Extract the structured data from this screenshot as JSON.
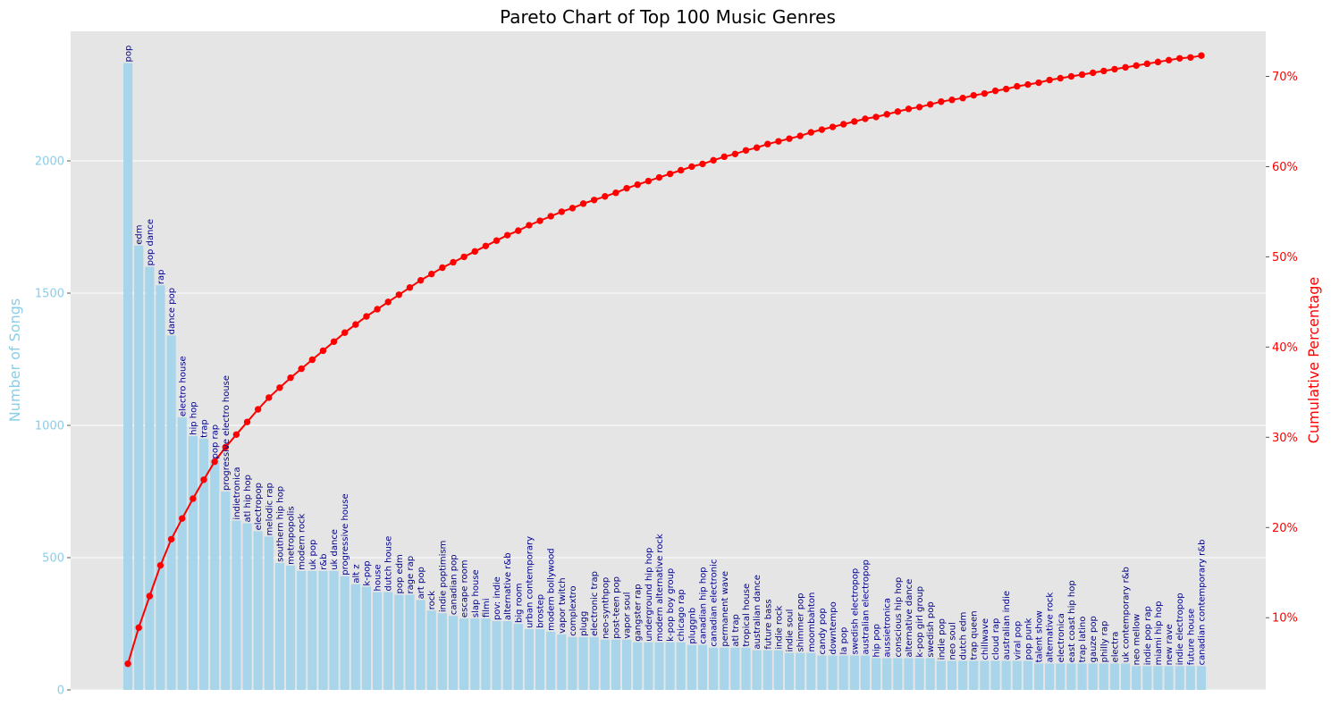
{
  "chart_data": {
    "type": "bar",
    "title": "Pareto Chart of Top 100 Music Genres",
    "ylabel": "Number of Songs",
    "y2label": "Cumulative Percentage",
    "ylim": [
      0,
      2490
    ],
    "y2lim": [
      2.0,
      75.0
    ],
    "yticks": [
      0,
      500,
      1000,
      1500,
      2000
    ],
    "y2ticks": [
      10,
      20,
      30,
      40,
      50,
      60,
      70
    ],
    "grid": true,
    "colors": {
      "background": "#e5e5e5",
      "bar": "#a8d5ea",
      "line": "#ff0000",
      "bar_label": "#00008b",
      "left_axis": "#87ceeb",
      "right_axis": "#ff0000",
      "grid": "#ffffff"
    },
    "categories": [
      "pop",
      "edm",
      "pop dance",
      "rap",
      "dance pop",
      "electro house",
      "hip hop",
      "trap",
      "pop rap",
      "progressive electro house",
      "indietronica",
      "atl hip hop",
      "electropop",
      "melodic rap",
      "southern hip hop",
      "metropopolis",
      "modern rock",
      "uk pop",
      "r&b",
      "uk dance",
      "progressive house",
      "alt z",
      "k-pop",
      "house",
      "dutch house",
      "pop edm",
      "rage rap",
      "art pop",
      "rock",
      "indie poptimism",
      "canadian pop",
      "escape room",
      "slap house",
      "filmi",
      "pov: indie",
      "alternative r&b",
      "big room",
      "urban contemporary",
      "brostep",
      "modern bollywood",
      "vapor twitch",
      "complextro",
      "plugg",
      "electronic trap",
      "neo-synthpop",
      "post-teen pop",
      "vapor soul",
      "gangster rap",
      "underground hip hop",
      "modern alternative rock",
      "k-pop boy group",
      "chicago rap",
      "pluggnb",
      "canadian hip hop",
      "canadian electronic",
      "permanent wave",
      "atl trap",
      "tropical house",
      "australian dance",
      "future bass",
      "indie rock",
      "indie soul",
      "shimmer pop",
      "moombahton",
      "candy pop",
      "downtempo",
      "la pop",
      "swedish electropop",
      "australian electropop",
      "hip pop",
      "aussietronica",
      "conscious hip hop",
      "alternative dance",
      "k-pop girl group",
      "swedish pop",
      "indie pop",
      "neo soul",
      "dutch edm",
      "trap queen",
      "chillwave",
      "cloud rap",
      "australian indie",
      "viral pop",
      "pop punk",
      "talent show",
      "alternative rock",
      "electronica",
      "east coast hip hop",
      "trap latino",
      "gauze pop",
      "philly rap",
      "electra",
      "uk contemporary r&b",
      "neo mellow",
      "indie pop rap",
      "miami hip hop",
      "new rave",
      "indie electropop",
      "future house",
      "canadian contemporary r&b"
    ],
    "values": [
      2370,
      1680,
      1600,
      1530,
      1340,
      1030,
      960,
      950,
      870,
      750,
      640,
      630,
      600,
      580,
      480,
      470,
      450,
      450,
      450,
      450,
      430,
      400,
      390,
      370,
      370,
      360,
      360,
      340,
      300,
      290,
      280,
      270,
      270,
      270,
      260,
      260,
      250,
      230,
      230,
      220,
      210,
      200,
      200,
      200,
      190,
      190,
      190,
      180,
      180,
      180,
      180,
      180,
      170,
      170,
      160,
      160,
      160,
      160,
      150,
      150,
      150,
      140,
      140,
      140,
      130,
      130,
      130,
      130,
      130,
      120,
      120,
      120,
      120,
      120,
      120,
      110,
      110,
      110,
      110,
      110,
      110,
      110,
      110,
      110,
      100,
      100,
      100,
      100,
      100,
      100,
      100,
      100,
      100,
      90,
      90,
      90,
      90,
      90,
      90,
      90
    ],
    "cumulative_percentage": [
      4.9,
      8.9,
      12.4,
      15.8,
      18.7,
      21.0,
      23.2,
      25.3,
      27.3,
      28.9,
      30.3,
      31.7,
      33.1,
      34.4,
      35.5,
      36.6,
      37.6,
      38.6,
      39.6,
      40.6,
      41.6,
      42.5,
      43.4,
      44.2,
      45.0,
      45.8,
      46.6,
      47.4,
      48.1,
      48.8,
      49.4,
      50.0,
      50.6,
      51.2,
      51.8,
      52.4,
      52.9,
      53.5,
      54.0,
      54.5,
      55.0,
      55.4,
      55.9,
      56.3,
      56.7,
      57.1,
      57.6,
      58.0,
      58.4,
      58.8,
      59.2,
      59.6,
      60.0,
      60.3,
      60.7,
      61.1,
      61.4,
      61.8,
      62.1,
      62.5,
      62.8,
      63.1,
      63.4,
      63.8,
      64.1,
      64.4,
      64.7,
      65.0,
      65.3,
      65.5,
      65.8,
      66.1,
      66.4,
      66.6,
      66.9,
      67.2,
      67.4,
      67.6,
      67.9,
      68.1,
      68.4,
      68.6,
      68.9,
      69.1,
      69.3,
      69.6,
      69.8,
      70.0,
      70.2,
      70.4,
      70.6,
      70.8,
      71.0,
      71.2,
      71.4,
      71.6,
      71.8,
      72.0,
      72.1,
      72.3
    ]
  }
}
